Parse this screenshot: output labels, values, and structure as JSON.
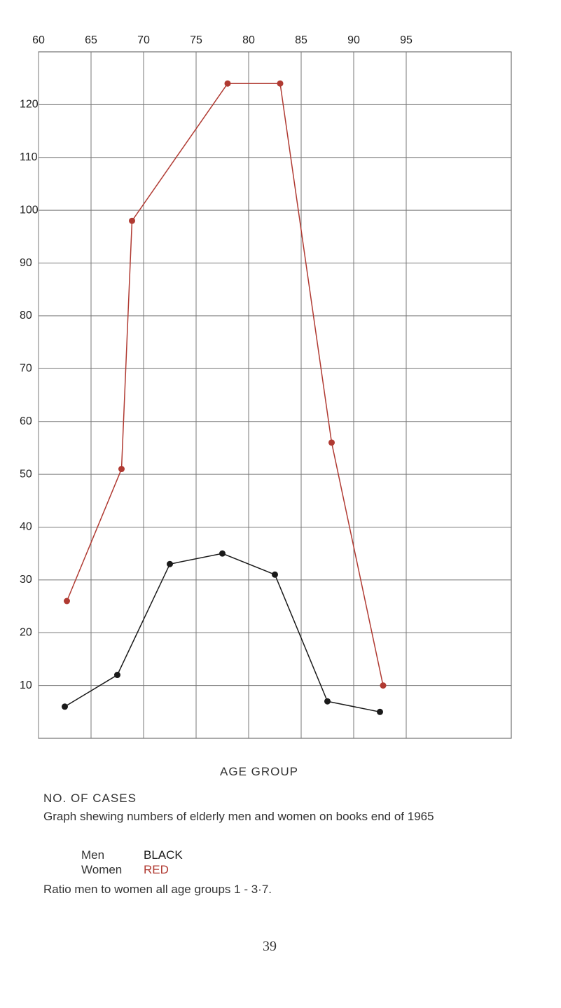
{
  "chart_data": {
    "type": "line",
    "xlabel": "AGE GROUP",
    "ylabel": "NO. OF CASES",
    "caption": "Graph shewing numbers of elderly men and women on books end of 1965",
    "note": "Ratio men to women all age groups 1 - 3·7.",
    "xlim": [
      60,
      105
    ],
    "xticks": [
      60,
      65,
      70,
      75,
      80,
      85,
      90,
      95
    ],
    "ylim": [
      0,
      130
    ],
    "yticks": [
      10,
      20,
      30,
      40,
      50,
      60,
      70,
      80,
      90,
      100,
      110,
      120
    ],
    "grid": true,
    "series": [
      {
        "name": "Men",
        "color_label": "BLACK",
        "color": "#1a1a1a",
        "x": [
          62.5,
          67.5,
          72.5,
          77.5,
          82.5,
          87.5,
          92.5
        ],
        "values": [
          6,
          12,
          33,
          35,
          31,
          7,
          5
        ]
      },
      {
        "name": "Women",
        "color_label": "RED",
        "color": "#b03a32",
        "x": [
          62.7,
          67.9,
          68.9,
          78,
          83,
          87.9,
          92.8
        ],
        "values": [
          26,
          51,
          98,
          124,
          124,
          56,
          10
        ]
      }
    ],
    "page_number": "39"
  }
}
